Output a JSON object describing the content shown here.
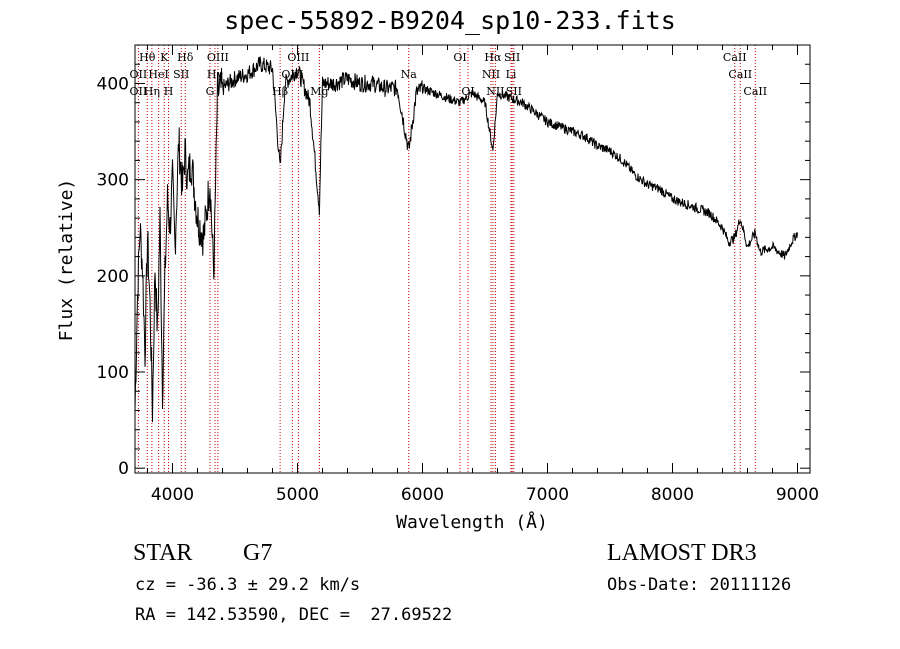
{
  "chart_data": {
    "type": "line",
    "title": "spec-55892-B9204_sp10-233.fits",
    "xlabel": "Wavelength (Å)",
    "ylabel": "Flux (relative)",
    "xlim": [
      3700,
      9100
    ],
    "ylim": [
      -5,
      440
    ],
    "xticks": [
      "4000",
      "5000",
      "6000",
      "7000",
      "8000",
      "9000"
    ],
    "yticks": [
      "0",
      "100",
      "200",
      "300",
      "400"
    ],
    "series": [
      {
        "x": [
          3700,
          3720,
          3740,
          3760,
          3780,
          3800,
          3820,
          3840,
          3860,
          3880,
          3900,
          3920,
          3940,
          3960,
          3980,
          4000,
          4020,
          4050,
          4080,
          4100,
          4120,
          4150,
          4200,
          4250,
          4300,
          4330,
          4360,
          4400,
          4450,
          4500,
          4600,
          4700,
          4800,
          4861,
          4900,
          5000,
          5100,
          5175,
          5200,
          5300,
          5400,
          5500,
          5600,
          5700,
          5800,
          5890,
          5950,
          6000,
          6100,
          6200,
          6300,
          6400,
          6500,
          6563,
          6600,
          6700,
          6800,
          6900,
          7000,
          7100,
          7200,
          7300,
          7400,
          7500,
          7600,
          7700,
          7800,
          7900,
          8000,
          8100,
          8200,
          8300,
          8400,
          8450,
          8498,
          8542,
          8600,
          8662,
          8700,
          8800,
          8900,
          8950,
          9000
        ],
        "y": [
          60,
          180,
          250,
          210,
          120,
          240,
          170,
          60,
          210,
          140,
          260,
          80,
          200,
          280,
          250,
          300,
          230,
          340,
          290,
          330,
          300,
          320,
          260,
          240,
          300,
          200,
          390,
          395,
          400,
          405,
          410,
          420,
          415,
          310,
          400,
          415,
          380,
          270,
          400,
          400,
          405,
          400,
          400,
          395,
          395,
          330,
          390,
          395,
          390,
          385,
          380,
          390,
          380,
          330,
          390,
          385,
          380,
          370,
          360,
          355,
          350,
          345,
          335,
          330,
          320,
          305,
          295,
          290,
          280,
          275,
          270,
          265,
          250,
          235,
          240,
          260,
          230,
          245,
          225,
          230,
          220,
          235,
          245
        ]
      }
    ],
    "annotations": [
      {
        "text": "Hθ",
        "x": 3798,
        "row": 1
      },
      {
        "text": "K",
        "x": 3934,
        "row": 1
      },
      {
        "text": "Hδ",
        "x": 4102,
        "row": 1
      },
      {
        "text": "OIII",
        "x": 4363,
        "row": 1
      },
      {
        "text": "OIII",
        "x": 5007,
        "row": 1
      },
      {
        "text": "OI",
        "x": 6300,
        "row": 1
      },
      {
        "text": "Hα",
        "x": 6563,
        "row": 1
      },
      {
        "text": "SII",
        "x": 6717,
        "row": 1
      },
      {
        "text": "CaII",
        "x": 8498,
        "row": 1
      },
      {
        "text": "OII",
        "x": 3727,
        "row": 2
      },
      {
        "text": "HeI",
        "x": 3889,
        "row": 2
      },
      {
        "text": "SII",
        "x": 4070,
        "row": 2
      },
      {
        "text": "Hγ",
        "x": 4340,
        "row": 2
      },
      {
        "text": "OIII",
        "x": 4959,
        "row": 2
      },
      {
        "text": "Na",
        "x": 5890,
        "row": 2
      },
      {
        "text": "NII",
        "x": 6548,
        "row": 2
      },
      {
        "text": "Li",
        "x": 6708,
        "row": 2
      },
      {
        "text": "CaII",
        "x": 8542,
        "row": 2
      },
      {
        "text": "OII",
        "x": 3727,
        "row": 3
      },
      {
        "text": "Hη",
        "x": 3835,
        "row": 3
      },
      {
        "text": "H",
        "x": 3968,
        "row": 3
      },
      {
        "text": "G",
        "x": 4300,
        "row": 3
      },
      {
        "text": "Hβ",
        "x": 4861,
        "row": 3
      },
      {
        "text": "Mg",
        "x": 5175,
        "row": 3
      },
      {
        "text": "OI",
        "x": 6364,
        "row": 3
      },
      {
        "text": "NII",
        "x": 6583,
        "row": 3
      },
      {
        "text": "SII",
        "x": 6731,
        "row": 3
      },
      {
        "text": "CaII",
        "x": 8662,
        "row": 3
      }
    ],
    "line_markers": [
      3727,
      3798,
      3835,
      3889,
      3934,
      3968,
      4070,
      4102,
      4300,
      4340,
      4363,
      4861,
      4959,
      5007,
      5175,
      5890,
      6300,
      6364,
      6548,
      6563,
      6583,
      6708,
      6717,
      6731,
      8498,
      8542,
      8662
    ]
  },
  "info": {
    "class": "STAR",
    "subclass": "G7",
    "survey": "LAMOST DR3",
    "cz": "cz = -36.3 ± 29.2 km/s",
    "obs_date": "Obs-Date: 20111126",
    "coords": "RA = 142.53590, DEC =  27.69522"
  },
  "colors": {
    "axis": "#000000",
    "line": "#000000",
    "marker": "#cc0000"
  }
}
